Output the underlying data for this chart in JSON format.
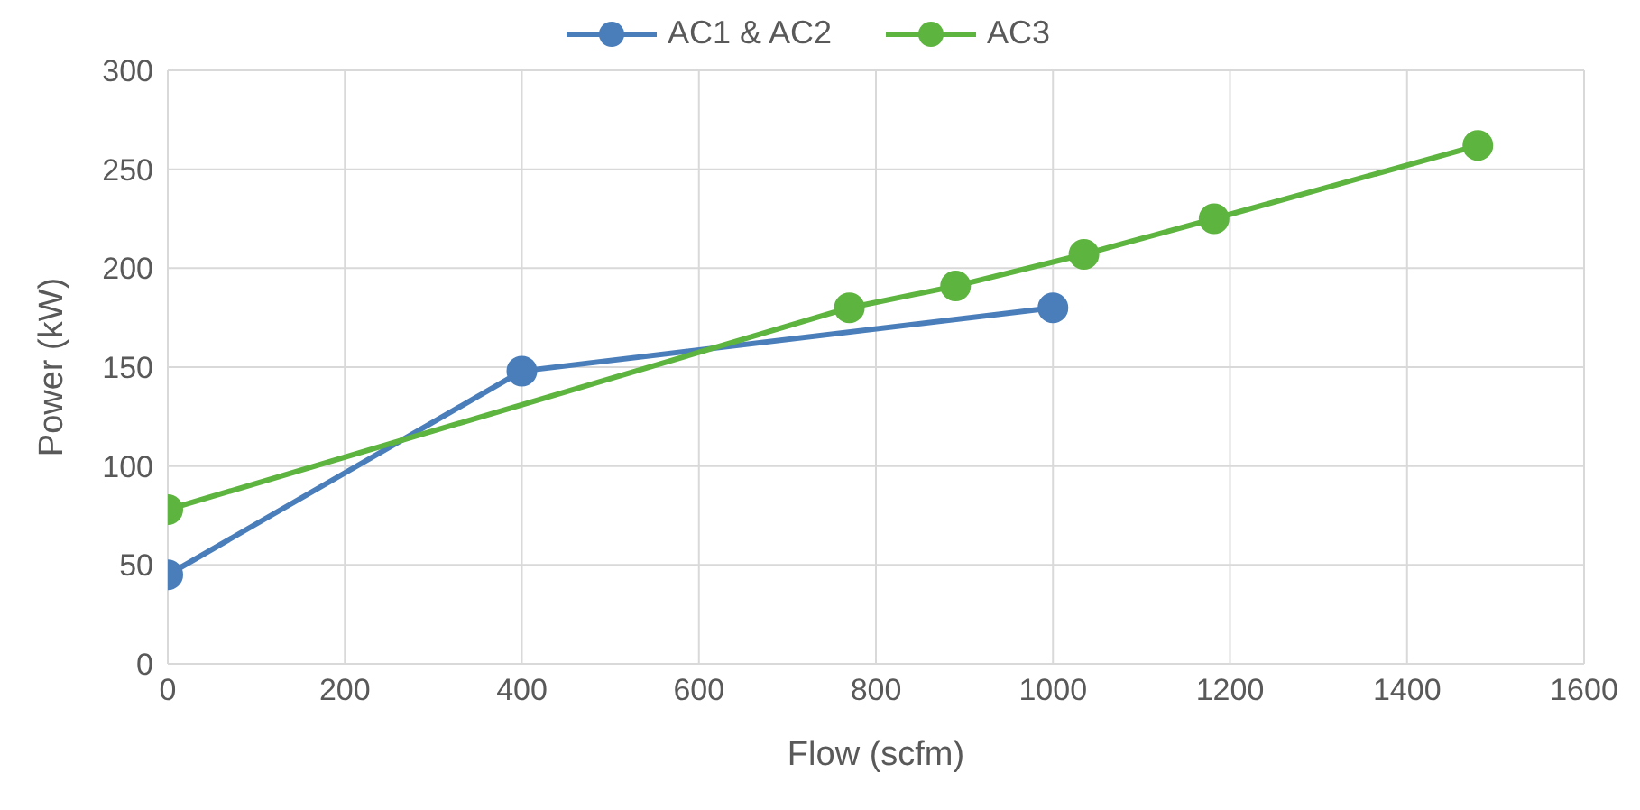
{
  "chart_data": {
    "type": "line",
    "xlabel": "Flow (scfm)",
    "ylabel": "Power (kW)",
    "xlim": [
      0,
      1600
    ],
    "xticks": [
      0,
      200,
      400,
      600,
      800,
      1000,
      1200,
      1400,
      1600
    ],
    "ylim": [
      0,
      300
    ],
    "yticks": [
      0,
      50,
      100,
      150,
      200,
      250,
      300
    ],
    "grid": true,
    "legend": "top",
    "marker": "circle",
    "line_style": "solid",
    "series": [
      {
        "name": "AC1 & AC2",
        "color": "#4a7ebb",
        "x": [
          0,
          400,
          1000
        ],
        "values": [
          45,
          148,
          180
        ]
      },
      {
        "name": "AC3",
        "color": "#5db43f",
        "x": [
          0,
          770,
          890,
          1035,
          1182,
          1480
        ],
        "values": [
          78,
          180,
          191,
          207,
          225,
          262
        ]
      }
    ]
  }
}
